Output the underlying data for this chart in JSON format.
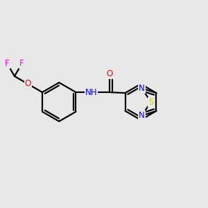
{
  "bg_color": "#e8e8e8",
  "bond_color": "#000000",
  "bond_width": 1.6,
  "dbo": 0.12,
  "atom_colors": {
    "N": "#0000ff",
    "O": "#ff0000",
    "S": "#cccc00",
    "F": "#ff00ff",
    "C": "#000000"
  },
  "font_size": 8.5,
  "fig_size": [
    3.0,
    3.0
  ],
  "dpi": 100
}
